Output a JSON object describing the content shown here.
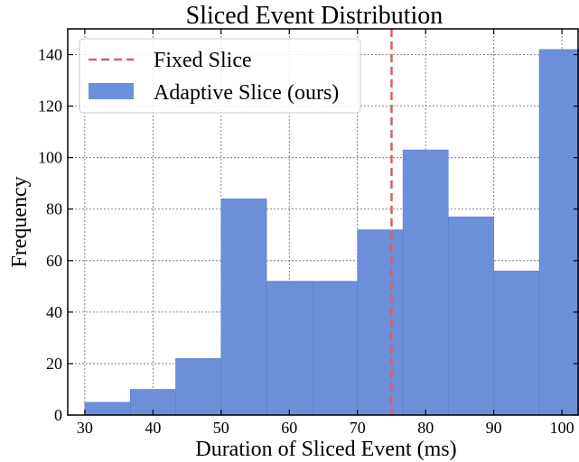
{
  "chart_data": {
    "type": "bar",
    "title": "Sliced Event Distribution",
    "xlabel": "Duration of Sliced Event (ms)",
    "ylabel": "Frequency",
    "xlim": [
      27.5,
      102.5
    ],
    "ylim": [
      0,
      150
    ],
    "xticks": [
      "30",
      "40",
      "50",
      "60",
      "70",
      "80",
      "90",
      "100"
    ],
    "yticks": [
      "0",
      "20",
      "40",
      "60",
      "80",
      "100",
      "120",
      "140"
    ],
    "grid": true,
    "legend_position": "top-left",
    "series": [
      {
        "name": "Adaptive Slice (ours)",
        "kind": "histogram",
        "color": "#6b8fd8",
        "bin_edges": [
          30,
          36.67,
          43.33,
          50,
          56.67,
          63.33,
          70,
          76.67,
          83.33,
          90,
          96.67,
          103.33
        ],
        "values": [
          5,
          10,
          22,
          84,
          52,
          52,
          72,
          103,
          77,
          56,
          142
        ]
      },
      {
        "name": "Fixed Slice",
        "kind": "vline",
        "color": "#d0606e",
        "style": "dashed",
        "x": 75
      }
    ]
  }
}
